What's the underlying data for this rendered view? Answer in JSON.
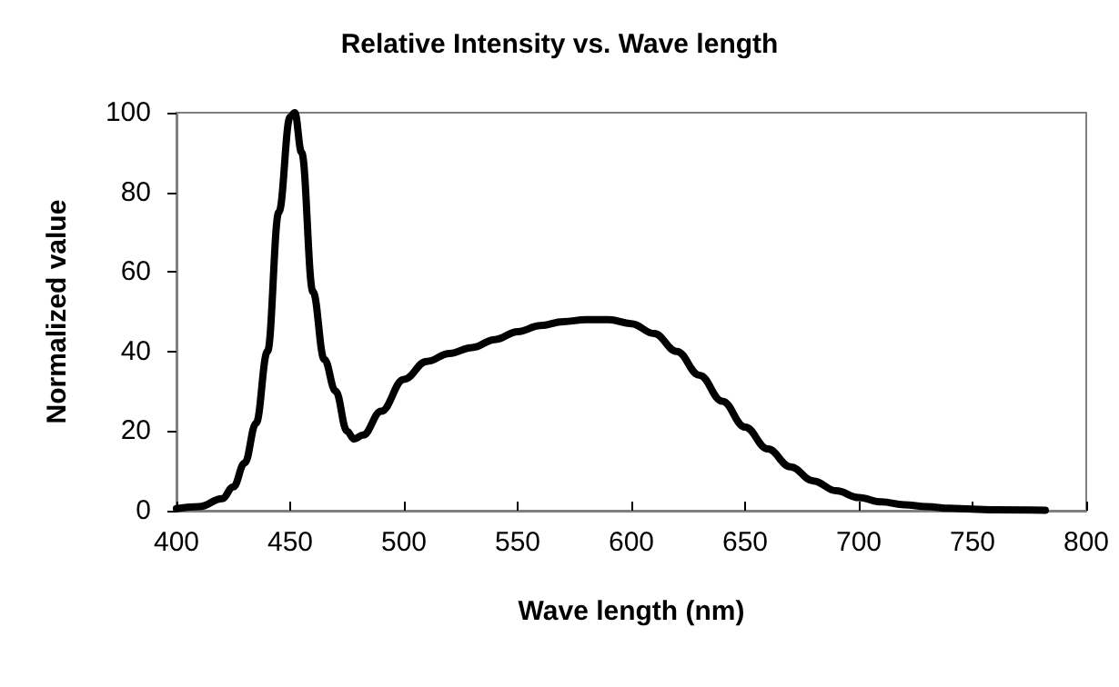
{
  "chart_data": {
    "type": "line",
    "title": "Relative Intensity vs. Wave length",
    "xlabel": "Wave length (nm)",
    "ylabel": "Normalized value",
    "xlim": [
      400,
      800
    ],
    "xticks": [
      400,
      450,
      500,
      550,
      600,
      650,
      700,
      750,
      800
    ],
    "ylim": [
      0,
      100
    ],
    "yticks": [
      0,
      20,
      40,
      60,
      80,
      100
    ],
    "grid": false,
    "marker": "none",
    "line_style": "solid",
    "series": [
      {
        "color": "#000000",
        "x": [
          400,
          410,
          420,
          425,
          430,
          435,
          440,
          445,
          450,
          452,
          455,
          460,
          465,
          470,
          475,
          478,
          482,
          490,
          500,
          510,
          520,
          530,
          540,
          550,
          560,
          570,
          580,
          590,
          600,
          610,
          620,
          630,
          640,
          650,
          660,
          670,
          680,
          690,
          700,
          710,
          720,
          730,
          740,
          750,
          760,
          782
        ],
        "values": [
          0.5,
          1,
          3,
          6,
          12,
          22,
          40,
          75,
          99,
          100,
          90,
          55,
          38,
          30,
          20,
          18,
          19,
          25,
          33,
          37.5,
          39.5,
          41,
          43,
          45,
          46.5,
          47.5,
          48,
          48,
          47,
          44.5,
          40,
          34,
          27.5,
          21,
          15.5,
          11,
          7.5,
          5,
          3.3,
          2.2,
          1.5,
          1,
          0.6,
          0.4,
          0.2,
          0.1
        ]
      }
    ]
  }
}
